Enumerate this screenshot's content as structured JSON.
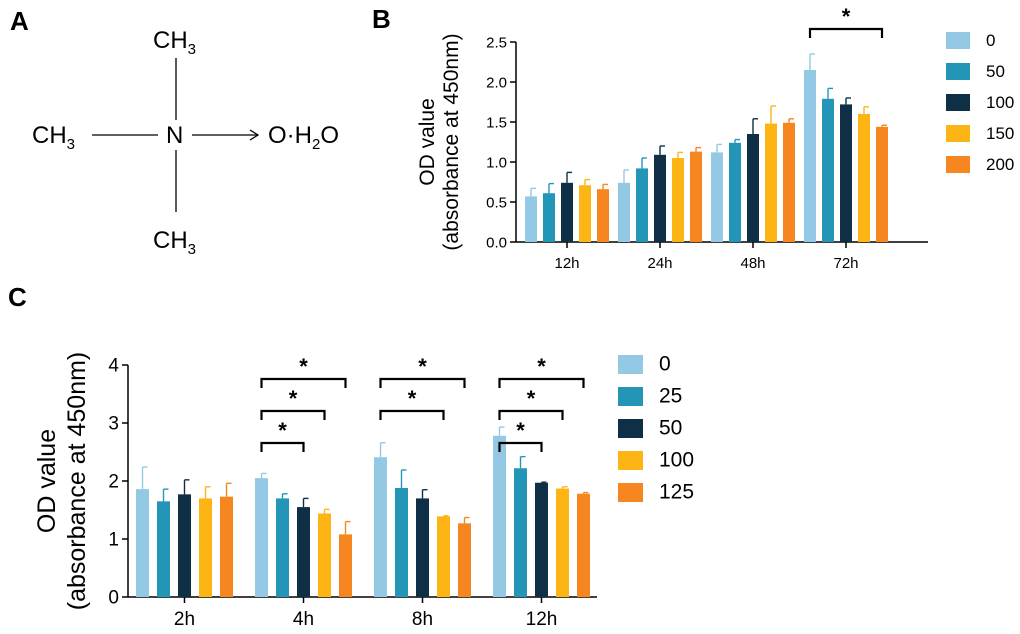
{
  "panels": {
    "a": "A",
    "b": "B",
    "c": "C"
  },
  "molecule": {
    "top": "CH",
    "left": "CH",
    "bottom": "CH",
    "sub3": "3",
    "center": "N",
    "right_o": "O·H",
    "sub2": "2",
    "right_o2": "O"
  },
  "colors": [
    "#94c9e6",
    "#2396b8",
    "#0e2f45",
    "#fdb515",
    "#f6861f"
  ],
  "chart_data": [
    {
      "id": "B",
      "type": "bar",
      "ylabel_line1": "OD value",
      "ylabel_line2": "(absorbance at 450nm)",
      "ylim": [
        0,
        2.5
      ],
      "yticks": [
        "0.0",
        "0.5",
        "1.0",
        "1.5",
        "2.0",
        "2.5"
      ],
      "categories": [
        "12h",
        "24h",
        "48h",
        "72h"
      ],
      "legend": [
        "0",
        "50",
        "100",
        "150",
        "200"
      ],
      "series": [
        {
          "name": "0",
          "values": [
            0.57,
            0.74,
            1.12,
            2.15
          ],
          "errors": [
            0.1,
            0.16,
            0.1,
            0.2
          ]
        },
        {
          "name": "50",
          "values": [
            0.61,
            0.92,
            1.24,
            1.79
          ],
          "errors": [
            0.12,
            0.13,
            0.04,
            0.13
          ]
        },
        {
          "name": "100",
          "values": [
            0.74,
            1.09,
            1.35,
            1.72
          ],
          "errors": [
            0.13,
            0.11,
            0.19,
            0.08
          ]
        },
        {
          "name": "150",
          "values": [
            0.71,
            1.05,
            1.48,
            1.6
          ],
          "errors": [
            0.07,
            0.07,
            0.22,
            0.09
          ]
        },
        {
          "name": "200",
          "values": [
            0.66,
            1.13,
            1.49,
            1.44
          ],
          "errors": [
            0.06,
            0.05,
            0.05,
            0.02
          ]
        }
      ],
      "significance": [
        {
          "category": "72h",
          "from": "0",
          "to": "200",
          "label": "*"
        }
      ]
    },
    {
      "id": "C",
      "type": "bar",
      "ylabel_line1": "OD value",
      "ylabel_line2": "(absorbance at 450nm)",
      "ylim": [
        0,
        4
      ],
      "yticks": [
        "0",
        "1",
        "2",
        "3",
        "4"
      ],
      "categories": [
        "2h",
        "4h",
        "8h",
        "12h"
      ],
      "legend": [
        "0",
        "25",
        "50",
        "100",
        "125"
      ],
      "series": [
        {
          "name": "0",
          "values": [
            1.86,
            2.05,
            2.41,
            2.78
          ],
          "errors": [
            0.38,
            0.08,
            0.25,
            0.15
          ]
        },
        {
          "name": "25",
          "values": [
            1.65,
            1.7,
            1.88,
            2.22
          ],
          "errors": [
            0.21,
            0.08,
            0.31,
            0.2
          ]
        },
        {
          "name": "50",
          "values": [
            1.77,
            1.55,
            1.7,
            1.97
          ],
          "errors": [
            0.25,
            0.15,
            0.15,
            0.01
          ]
        },
        {
          "name": "100",
          "values": [
            1.7,
            1.44,
            1.39,
            1.87
          ],
          "errors": [
            0.2,
            0.07,
            0.01,
            0.03
          ]
        },
        {
          "name": "125",
          "values": [
            1.73,
            1.08,
            1.27,
            1.78
          ],
          "errors": [
            0.23,
            0.22,
            0.1,
            0.02
          ]
        }
      ],
      "significance": [
        {
          "category": "4h",
          "from": "0",
          "to": "50",
          "level": 1,
          "label": "*"
        },
        {
          "category": "4h",
          "from": "0",
          "to": "100",
          "level": 2,
          "label": "*"
        },
        {
          "category": "4h",
          "from": "0",
          "to": "125",
          "level": 3,
          "label": "*"
        },
        {
          "category": "8h",
          "from": "0",
          "to": "100",
          "level": 2,
          "label": "*"
        },
        {
          "category": "8h",
          "from": "0",
          "to": "125",
          "level": 3,
          "label": "*"
        },
        {
          "category": "12h",
          "from": "0",
          "to": "50",
          "level": 1,
          "label": "*"
        },
        {
          "category": "12h",
          "from": "0",
          "to": "100",
          "level": 2,
          "label": "*"
        },
        {
          "category": "12h",
          "from": "0",
          "to": "125",
          "level": 3,
          "label": "*"
        }
      ]
    }
  ]
}
